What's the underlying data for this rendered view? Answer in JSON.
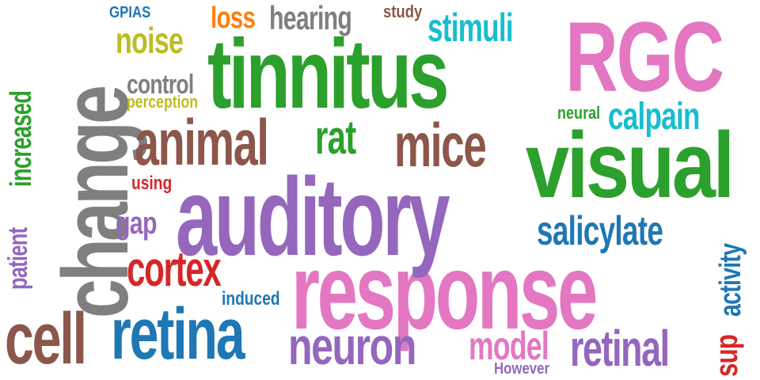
{
  "words": [
    {
      "text": "tinnitus",
      "color": "#2ca02c"
    },
    {
      "text": "response",
      "color": "#e377c2"
    },
    {
      "text": "auditory",
      "color": "#9467bd"
    },
    {
      "text": "visual",
      "color": "#2ca02c"
    },
    {
      "text": "change",
      "color": "#7f7f7f"
    },
    {
      "text": "RGC",
      "color": "#e377c2"
    },
    {
      "text": "retina",
      "color": "#1f77b4"
    },
    {
      "text": "cell",
      "color": "#8c564b"
    },
    {
      "text": "animal",
      "color": "#8c564b"
    },
    {
      "text": "mice",
      "color": "#8c564b"
    },
    {
      "text": "retinal",
      "color": "#9467bd"
    },
    {
      "text": "neuron",
      "color": "#9467bd"
    },
    {
      "text": "cortex",
      "color": "#d62728"
    },
    {
      "text": "rat",
      "color": "#2ca02c"
    },
    {
      "text": "salicylate",
      "color": "#1f77b4"
    },
    {
      "text": "model",
      "color": "#e377c2"
    },
    {
      "text": "calpain",
      "color": "#17becf"
    },
    {
      "text": "stimuli",
      "color": "#17becf"
    },
    {
      "text": "hearing",
      "color": "#7f7f7f"
    },
    {
      "text": "noise",
      "color": "#bcbd22"
    },
    {
      "text": "increased",
      "color": "#2ca02c"
    },
    {
      "text": "control",
      "color": "#7f7f7f"
    },
    {
      "text": "activity",
      "color": "#1f77b4"
    },
    {
      "text": "patient",
      "color": "#9467bd"
    },
    {
      "text": "loss",
      "color": "#ff7f0e"
    },
    {
      "text": "gap",
      "color": "#9467bd"
    },
    {
      "text": "sup",
      "color": "#d62728"
    },
    {
      "text": "perception",
      "color": "#bcbd22"
    },
    {
      "text": "study",
      "color": "#8c564b"
    },
    {
      "text": "neural",
      "color": "#2ca02c"
    },
    {
      "text": "induced",
      "color": "#1f77b4"
    },
    {
      "text": "using",
      "color": "#d62728"
    },
    {
      "text": "GPIAS",
      "color": "#1f77b4"
    },
    {
      "text": "However",
      "color": "#9467bd"
    }
  ]
}
